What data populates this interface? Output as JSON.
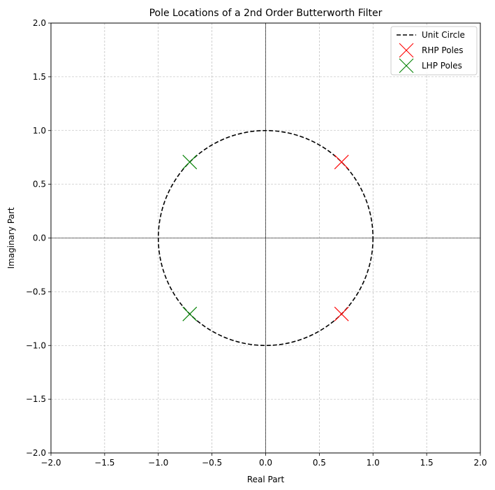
{
  "chart_data": {
    "type": "scatter",
    "title": "Pole Locations of a 2nd Order Butterworth Filter",
    "xlabel": "Real Part",
    "ylabel": "Imaginary Part",
    "xlim": [
      -2.0,
      2.0
    ],
    "ylim": [
      -2.0,
      2.0
    ],
    "xticks": [
      -2.0,
      -1.5,
      -1.0,
      -0.5,
      0.0,
      0.5,
      1.0,
      1.5,
      2.0
    ],
    "yticks": [
      -2.0,
      -1.5,
      -1.0,
      -0.5,
      0.0,
      0.5,
      1.0,
      1.5,
      2.0
    ],
    "xtick_labels": [
      "−2.0",
      "−1.5",
      "−1.0",
      "−0.5",
      "0.0",
      "0.5",
      "1.0",
      "1.5",
      "2.0"
    ],
    "ytick_labels": [
      "−2.0",
      "−1.5",
      "−1.0",
      "−0.5",
      "0.0",
      "0.5",
      "1.0",
      "1.5",
      "2.0"
    ],
    "grid": true,
    "legend_position": "top-right",
    "series": [
      {
        "name": "Unit Circle",
        "kind": "line",
        "style": "dashed",
        "color": "#000000",
        "center": [
          0,
          0
        ],
        "radius": 1.0
      },
      {
        "name": "RHP Poles",
        "kind": "marker",
        "marker": "x",
        "color": "#ff0000",
        "points": [
          [
            0.707,
            0.707
          ],
          [
            0.707,
            -0.707
          ]
        ]
      },
      {
        "name": "LHP Poles",
        "kind": "marker",
        "marker": "x",
        "color": "#008000",
        "points": [
          [
            -0.707,
            0.707
          ],
          [
            -0.707,
            -0.707
          ]
        ]
      }
    ]
  }
}
